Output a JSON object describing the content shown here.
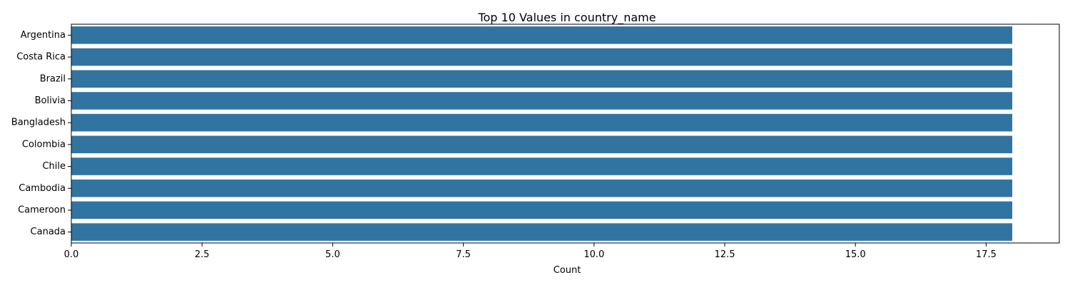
{
  "chart_data": {
    "type": "bar",
    "orientation": "horizontal",
    "title": "Top 10 Values in country_name",
    "xlabel": "Count",
    "ylabel": "",
    "categories": [
      "Argentina",
      "Costa Rica",
      "Brazil",
      "Bolivia",
      "Bangladesh",
      "Colombia",
      "Chile",
      "Cambodia",
      "Cameroon",
      "Canada"
    ],
    "values": [
      18,
      18,
      18,
      18,
      18,
      18,
      18,
      18,
      18,
      18
    ],
    "xlim": [
      0,
      18.9
    ],
    "xticks": [
      "0.0",
      "2.5",
      "5.0",
      "7.5",
      "10.0",
      "12.5",
      "15.0",
      "17.5"
    ],
    "bar_color": "#3274a1",
    "grid": false,
    "legend": "none"
  }
}
